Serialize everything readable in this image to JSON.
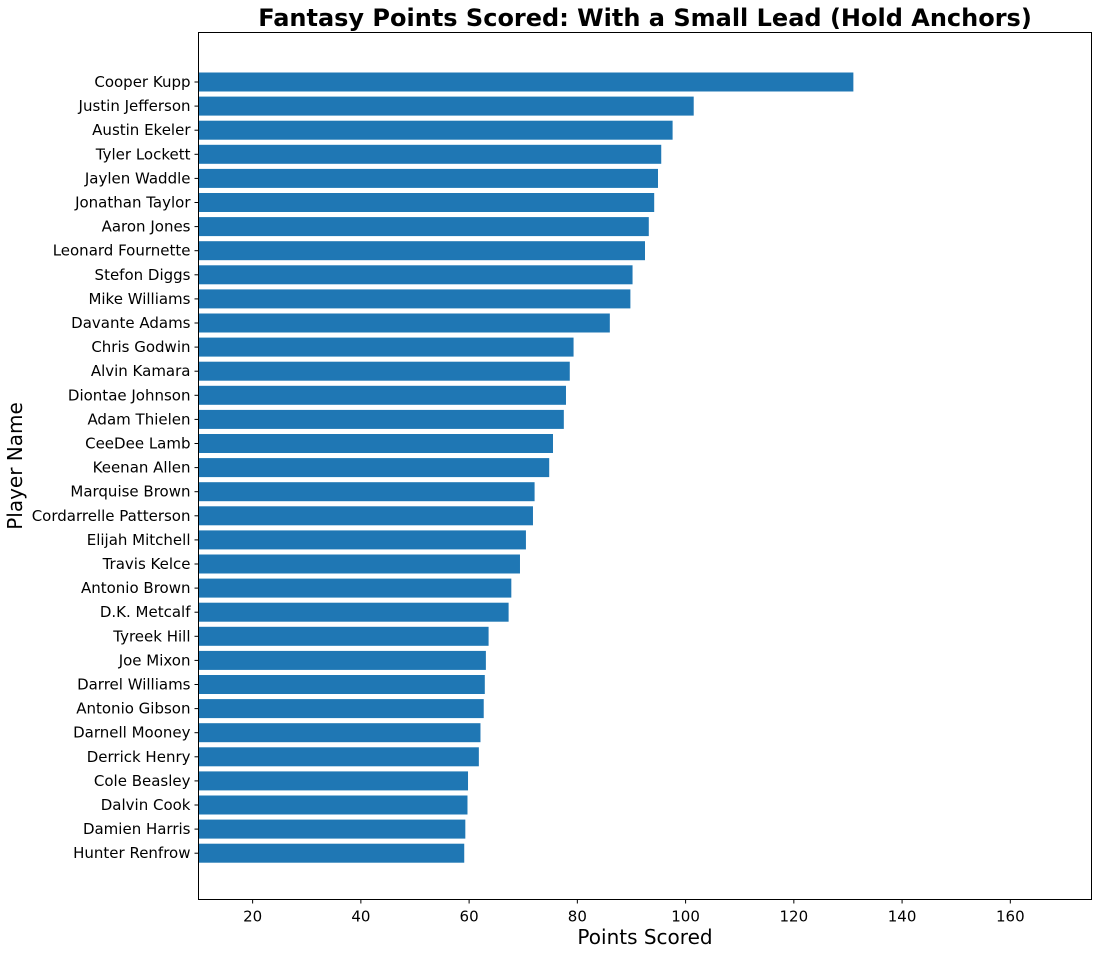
{
  "chart_data": {
    "type": "bar",
    "orientation": "horizontal",
    "title": "Fantasy Points Scored: With a Small Lead (Hold Anchors)",
    "xlabel": "Points Scored",
    "ylabel": "Player Name",
    "xlim": [
      10,
      175
    ],
    "xticks": [
      20,
      40,
      60,
      80,
      100,
      120,
      140,
      160
    ],
    "grid": false,
    "bar_color": "#1f77b4",
    "categories": [
      "Cooper Kupp",
      "Justin Jefferson",
      "Austin Ekeler",
      "Tyler Lockett",
      "Jaylen Waddle",
      "Jonathan Taylor",
      "Aaron Jones",
      "Leonard Fournette",
      "Stefon Diggs",
      "Mike Williams",
      "Davante Adams",
      "Chris Godwin",
      "Alvin Kamara",
      "Diontae Johnson",
      "Adam Thielen",
      "CeeDee Lamb",
      "Keenan Allen",
      "Marquise Brown",
      "Cordarrelle Patterson",
      "Elijah Mitchell",
      "Travis Kelce",
      "Antonio Brown",
      "D.K. Metcalf",
      "Tyreek Hill",
      "Joe Mixon",
      "Darrel Williams",
      "Antonio Gibson",
      "Darnell Mooney",
      "Derrick Henry",
      "Cole Beasley",
      "Dalvin Cook",
      "Damien Harris",
      "Hunter Renfrow"
    ],
    "values": [
      131.0,
      101.5,
      97.6,
      95.5,
      94.9,
      94.2,
      93.2,
      92.5,
      90.2,
      89.8,
      86.0,
      79.3,
      78.6,
      77.9,
      77.5,
      75.5,
      74.8,
      72.1,
      71.8,
      70.5,
      69.4,
      67.8,
      67.3,
      63.6,
      63.1,
      62.9,
      62.7,
      62.1,
      61.8,
      59.8,
      59.7,
      59.3,
      59.1
    ]
  }
}
